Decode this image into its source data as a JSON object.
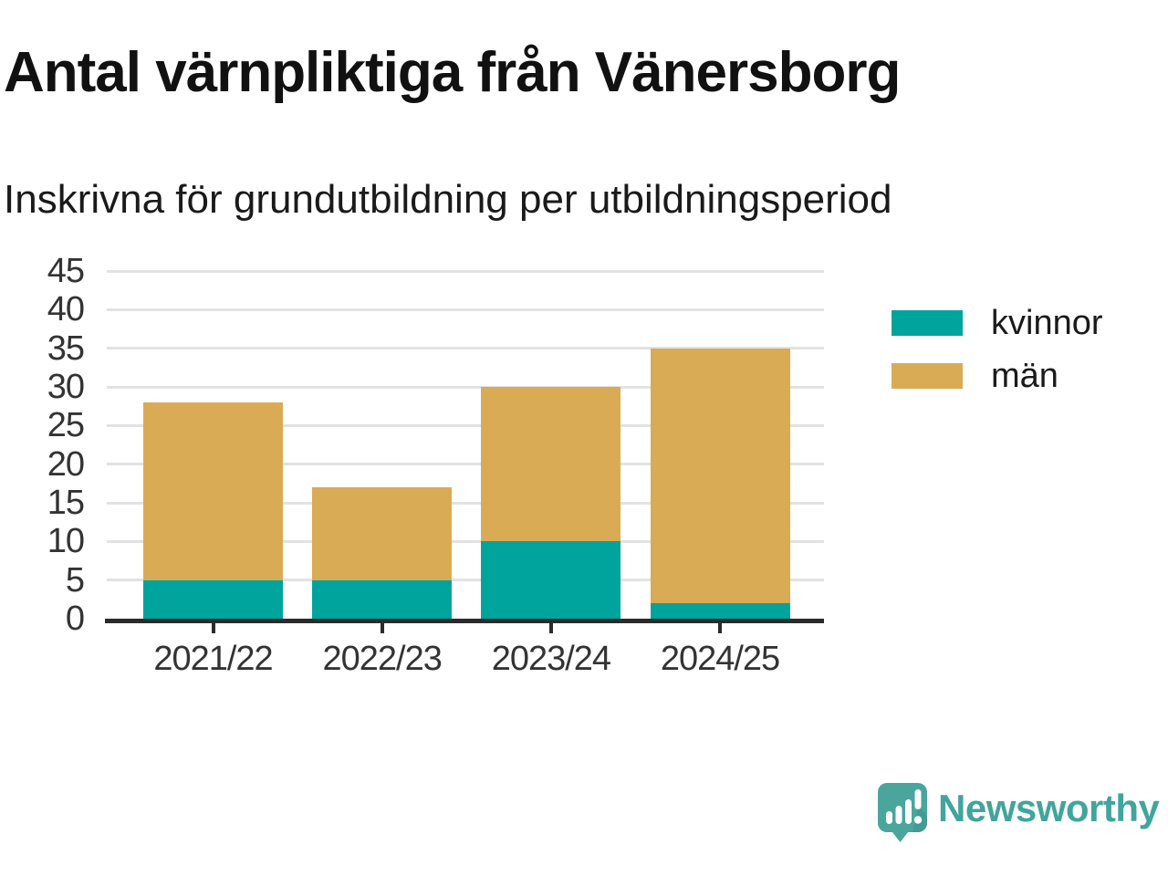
{
  "header": {
    "title": "Antal värnpliktiga från Vänersborg",
    "subtitle": "Inskrivna för grundutbildning per utbildningsperiod"
  },
  "chart_data": {
    "type": "bar",
    "stacked": true,
    "title": "Antal värnpliktiga från Vänersborg",
    "subtitle": "Inskrivna för grundutbildning per utbildningsperiod",
    "categories": [
      "2021/22",
      "2022/23",
      "2023/24",
      "2024/25"
    ],
    "series": [
      {
        "name": "kvinnor",
        "color": "#00a49c",
        "values": [
          5,
          5,
          10,
          2
        ]
      },
      {
        "name": "män",
        "color": "#d9ab55",
        "values": [
          23,
          12,
          20,
          33
        ]
      }
    ],
    "totals": [
      28,
      17,
      30,
      35
    ],
    "xlabel": "",
    "ylabel": "",
    "ylim": [
      0,
      45
    ],
    "ytick_step": 5,
    "yticks": [
      0,
      5,
      10,
      15,
      20,
      25,
      30,
      35,
      40,
      45
    ],
    "grid": true,
    "legend_position": "right"
  },
  "colors": {
    "axis": "#2b2b2b",
    "gridline": "#e2e2e2",
    "tick_label": "#333333",
    "text": "#1a1a1a",
    "brand_teal": "#41a59c"
  },
  "branding": {
    "text": "Newsworthy"
  }
}
